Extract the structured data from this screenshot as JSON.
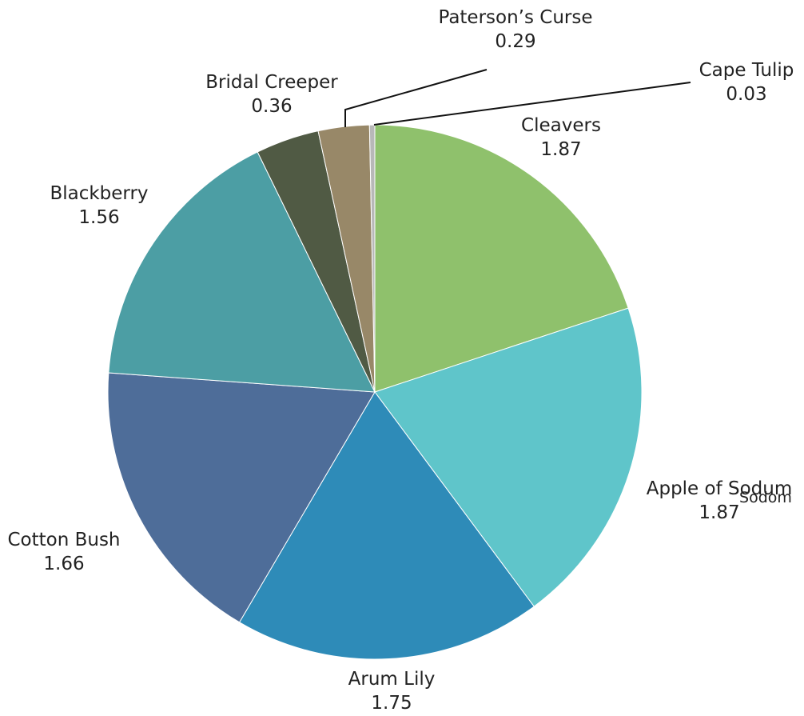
{
  "chart_data": {
    "type": "pie",
    "start": "top",
    "direction": "clockwise",
    "series": [
      {
        "label": "Cleavers",
        "value": 1.87,
        "value_text": "1.87",
        "color": "#8fc16c"
      },
      {
        "label": "Apple of Sodum",
        "value": 1.87,
        "value_text": "1.87",
        "color": "#5fc5ca"
      },
      {
        "label": "Arum Lily",
        "value": 1.75,
        "value_text": "1.75",
        "color": "#2e8bb8"
      },
      {
        "label": "Cotton Bush",
        "value": 1.66,
        "value_text": "1.66",
        "color": "#4e6d99"
      },
      {
        "label": "Blackberry",
        "value": 1.56,
        "value_text": "1.56",
        "color": "#4c9ea4"
      },
      {
        "label": "Bridal Creeper",
        "value": 0.36,
        "value_text": "0.36",
        "color": "#505a44"
      },
      {
        "label": "Paterson’s Curse",
        "value": 0.29,
        "value_text": "0.29",
        "color": "#988868"
      },
      {
        "label": "Cape Tulip",
        "value": 0.03,
        "value_text": "0.03",
        "color": "#b8b8b8"
      }
    ],
    "stray_text": "Sodom"
  }
}
